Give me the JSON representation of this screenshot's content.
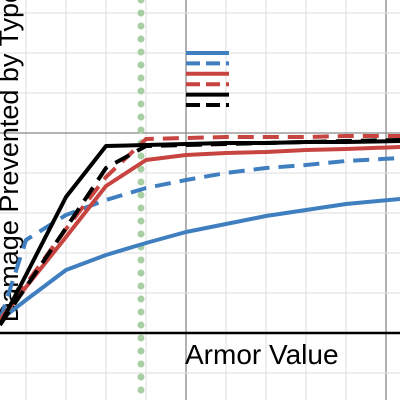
{
  "chart_data": {
    "type": "line",
    "x_label": "Armor Value",
    "y_label": "Damage Prevented by Type",
    "x": [
      0.07,
      0.2,
      0.4,
      0.6,
      0.8,
      1.0,
      1.2,
      1.4,
      1.6,
      1.8,
      2.07
    ],
    "series": [
      {
        "color": "#3f7fbf",
        "dash": false,
        "values": [
          0.065,
          0.165,
          0.315,
          0.39,
          0.45,
          0.505,
          0.545,
          0.585,
          0.615,
          0.645,
          0.67
        ]
      },
      {
        "color": "#3f7fbf",
        "dash": true,
        "values": [
          0.065,
          0.465,
          0.59,
          0.665,
          0.725,
          0.765,
          0.8,
          0.825,
          0.84,
          0.86,
          0.875
        ]
      },
      {
        "color": "#c74440",
        "dash": false,
        "values": [
          0.065,
          0.23,
          0.48,
          0.735,
          0.865,
          0.89,
          0.9,
          0.905,
          0.915,
          0.92,
          0.93
        ]
      },
      {
        "color": "#c74440",
        "dash": true,
        "values": [
          0.065,
          0.245,
          0.52,
          0.78,
          0.97,
          0.975,
          0.98,
          0.98,
          0.98,
          0.985,
          0.985
        ]
      },
      {
        "color": "#000000",
        "dash": false,
        "values": [
          0.04,
          0.29,
          0.68,
          0.935,
          0.94,
          0.945,
          0.95,
          0.95,
          0.955,
          0.955,
          0.96
        ]
      },
      {
        "color": "#000000",
        "dash": true,
        "values": [
          0.04,
          0.23,
          0.525,
          0.825,
          0.935,
          0.94,
          0.945,
          0.95,
          0.955,
          0.96,
          0.965
        ]
      }
    ],
    "vline": {
      "x": 0.775,
      "color": "#a8cfa4"
    },
    "xlim": [
      0.07,
      2.07
    ],
    "ylim": [
      -0.335,
      1.665
    ],
    "xticks": [
      0.2,
      0.4,
      0.6,
      0.8,
      1,
      1.2,
      1.4,
      1.6,
      1.8,
      2
    ],
    "yticks": [
      -0.2,
      0,
      0.2,
      0.4,
      0.6,
      0.8,
      1,
      1.2,
      1.4,
      1.6
    ],
    "major_every": 1,
    "grid": true
  }
}
